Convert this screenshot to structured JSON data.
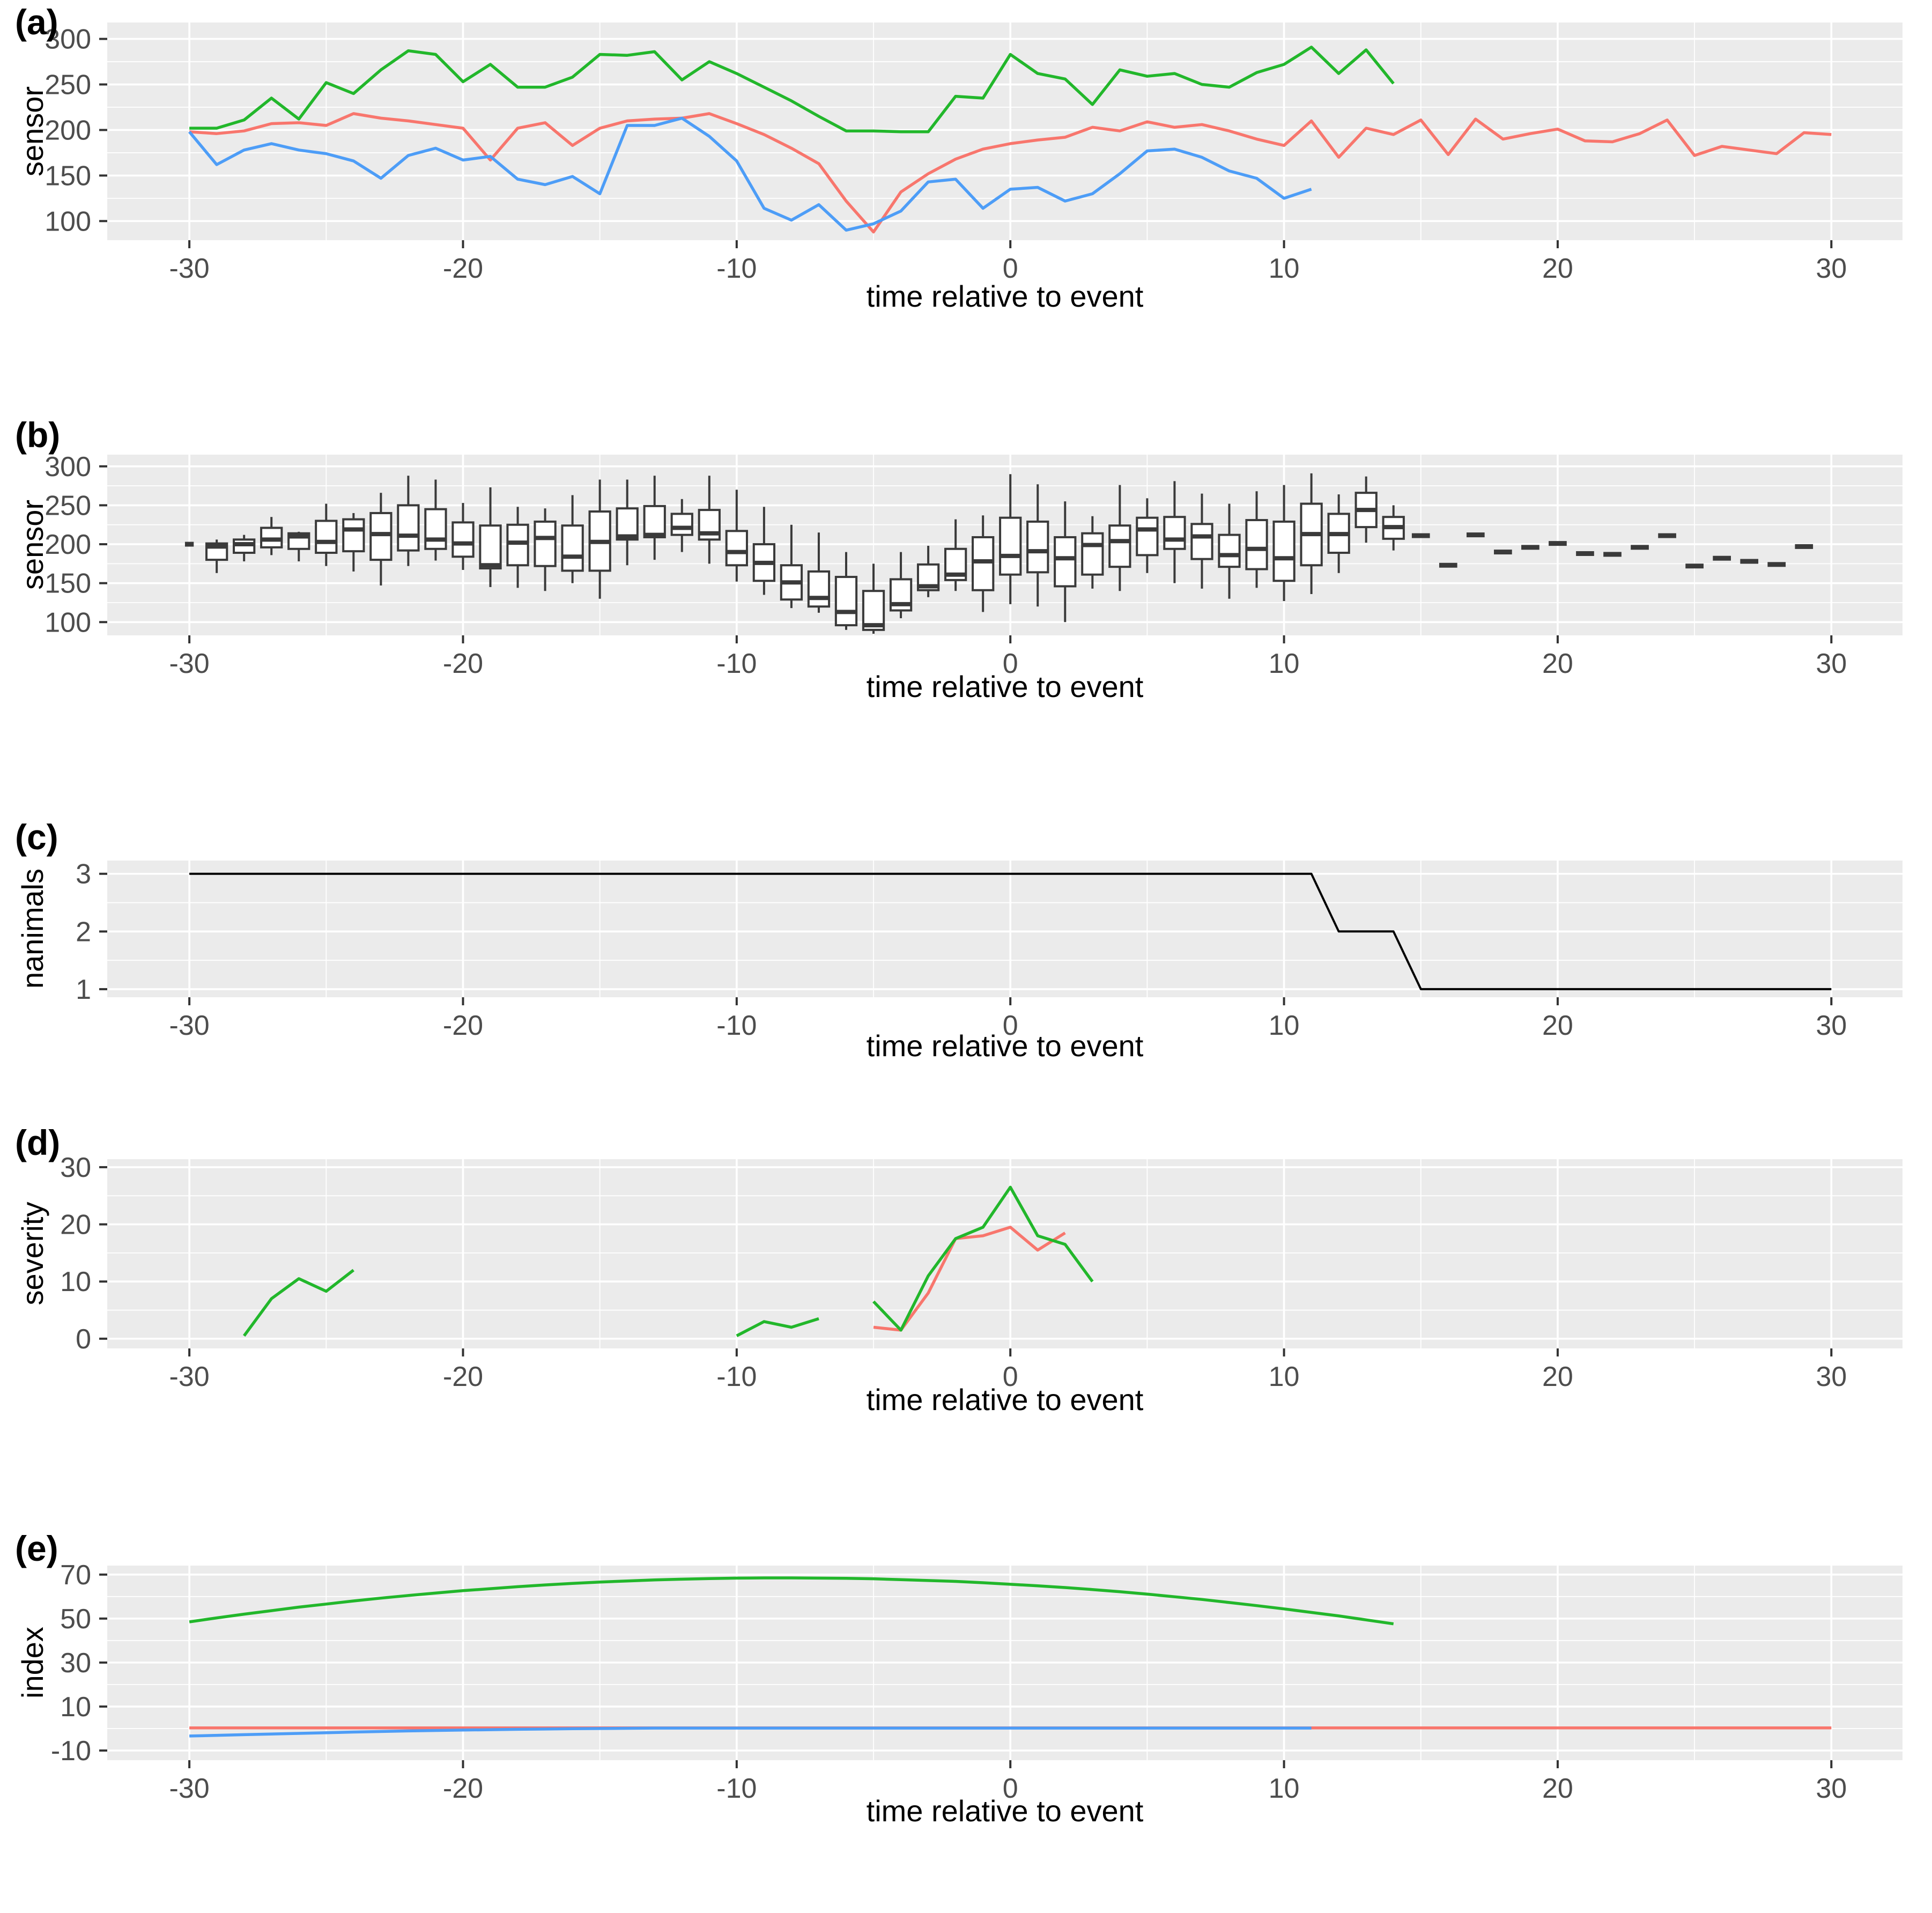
{
  "figure": {
    "xlabel": "time relative to event",
    "background": "#FFFFFF",
    "panel_bg": "#EBEBEB",
    "grid_color": "#FFFFFF",
    "axis_text_color": "#4D4D4D",
    "tick_color": "#333333",
    "box_color": "#3A3A3A",
    "colors": {
      "red": "#F8766D",
      "green": "#22B72B",
      "blue": "#4D9DF7",
      "black": "#000000"
    }
  },
  "panels": {
    "a": {
      "label": "(a)",
      "ylabel": "sensor"
    },
    "b": {
      "label": "(b)",
      "ylabel": "sensor"
    },
    "c": {
      "label": "(c)",
      "ylabel": "nanimals"
    },
    "d": {
      "label": "(d)",
      "ylabel": "severity"
    },
    "e": {
      "label": "(e)",
      "ylabel": "index"
    }
  },
  "chart_data": [
    {
      "id": "a",
      "type": "line",
      "title": "(a)",
      "ylabel": "sensor",
      "xlabel": "time relative to event",
      "xlim": [
        -33,
        32.6
      ],
      "ylim": [
        79,
        318
      ],
      "xticks": [
        -30,
        -20,
        -10,
        0,
        10,
        20,
        30
      ],
      "yticks": [
        100,
        150,
        200,
        250,
        300
      ],
      "grid": true,
      "legend": "none",
      "series": [
        {
          "name": "animal-red",
          "color": "#F8766D",
          "x0": -30,
          "step": 1,
          "y": [
            198,
            196,
            199,
            207,
            208,
            205,
            218,
            213,
            210,
            206,
            202,
            167,
            202,
            208,
            183,
            202,
            210,
            212,
            213,
            218,
            207,
            195,
            180,
            163,
            122,
            88,
            132,
            152,
            168,
            179,
            185,
            189,
            192,
            203,
            199,
            209,
            203,
            206,
            199,
            190,
            183,
            210,
            170,
            202,
            195,
            211,
            173,
            212,
            190,
            196,
            201,
            188,
            187,
            196,
            211,
            172,
            182,
            178,
            174,
            197,
            195
          ]
        },
        {
          "name": "animal-green",
          "color": "#22B72B",
          "x0": -30,
          "step": 1,
          "y": [
            202,
            202,
            211,
            235,
            212,
            252,
            240,
            266,
            287,
            283,
            253,
            272,
            247,
            247,
            258,
            283,
            282,
            286,
            255,
            275,
            262,
            247,
            232,
            215,
            199,
            199,
            198,
            198,
            237,
            235,
            283,
            262,
            256,
            228,
            266,
            259,
            262,
            250,
            247,
            263,
            272,
            291,
            262,
            288,
            251
          ]
        },
        {
          "name": "animal-blue",
          "color": "#4D9DF7",
          "x0": -30,
          "step": 1,
          "y": [
            198,
            162,
            178,
            185,
            178,
            174,
            166,
            147,
            172,
            180,
            167,
            171,
            146,
            140,
            149,
            130,
            205,
            205,
            213,
            193,
            166,
            114,
            101,
            118,
            90,
            97,
            111,
            143,
            146,
            114,
            135,
            137,
            122,
            130,
            152,
            177,
            179,
            170,
            155,
            147,
            125,
            135
          ]
        }
      ]
    },
    {
      "id": "b",
      "type": "boxplot",
      "title": "(b)",
      "ylabel": "sensor",
      "xlabel": "time relative to event",
      "xlim": [
        -33,
        32.6
      ],
      "ylim": [
        83,
        315
      ],
      "xticks": [
        -30,
        -20,
        -10,
        0,
        10,
        20,
        30
      ],
      "yticks": [
        100,
        150,
        200,
        250,
        300
      ],
      "grid": true,
      "boxes": [
        {
          "t": -29,
          "lo": 163,
          "q1": 180,
          "med": 197,
          "q3": 201,
          "hi": 206
        },
        {
          "t": -28,
          "lo": 178,
          "q1": 189,
          "med": 200,
          "q3": 206,
          "hi": 212
        },
        {
          "t": -27,
          "lo": 186,
          "q1": 196,
          "med": 206,
          "q3": 221,
          "hi": 235
        },
        {
          "t": -26,
          "lo": 178,
          "q1": 194,
          "med": 210,
          "q3": 214,
          "hi": 216
        },
        {
          "t": -25,
          "lo": 172,
          "q1": 189,
          "med": 203,
          "q3": 230,
          "hi": 252
        },
        {
          "t": -24,
          "lo": 165,
          "q1": 191,
          "med": 219,
          "q3": 232,
          "hi": 240
        },
        {
          "t": -23,
          "lo": 147,
          "q1": 180,
          "med": 213,
          "q3": 240,
          "hi": 266
        },
        {
          "t": -22,
          "lo": 172,
          "q1": 192,
          "med": 211,
          "q3": 250,
          "hi": 288
        },
        {
          "t": -21,
          "lo": 179,
          "q1": 194,
          "med": 206,
          "q3": 245,
          "hi": 283
        },
        {
          "t": -20,
          "lo": 167,
          "q1": 184,
          "med": 201,
          "q3": 228,
          "hi": 253
        },
        {
          "t": -19,
          "lo": 145,
          "q1": 169,
          "med": 173,
          "q3": 224,
          "hi": 273
        },
        {
          "t": -18,
          "lo": 144,
          "q1": 173,
          "med": 202,
          "q3": 225,
          "hi": 248
        },
        {
          "t": -17,
          "lo": 140,
          "q1": 172,
          "med": 208,
          "q3": 229,
          "hi": 246
        },
        {
          "t": -16,
          "lo": 150,
          "q1": 166,
          "med": 184,
          "q3": 224,
          "hi": 263
        },
        {
          "t": -15,
          "lo": 130,
          "q1": 166,
          "med": 203,
          "q3": 242,
          "hi": 283
        },
        {
          "t": -14,
          "lo": 173,
          "q1": 206,
          "med": 210,
          "q3": 246,
          "hi": 283
        },
        {
          "t": -13,
          "lo": 180,
          "q1": 209,
          "med": 212,
          "q3": 249,
          "hi": 288
        },
        {
          "t": -12,
          "lo": 190,
          "q1": 212,
          "med": 221,
          "q3": 239,
          "hi": 258
        },
        {
          "t": -11,
          "lo": 175,
          "q1": 206,
          "med": 214,
          "q3": 244,
          "hi": 288
        },
        {
          "t": -10,
          "lo": 152,
          "q1": 173,
          "med": 190,
          "q3": 217,
          "hi": 270
        },
        {
          "t": -9,
          "lo": 135,
          "q1": 153,
          "med": 176,
          "q3": 200,
          "hi": 248
        },
        {
          "t": -8,
          "lo": 118,
          "q1": 129,
          "med": 151,
          "q3": 173,
          "hi": 225
        },
        {
          "t": -7,
          "lo": 112,
          "q1": 120,
          "med": 131,
          "q3": 165,
          "hi": 215
        },
        {
          "t": -6,
          "lo": 90,
          "q1": 96,
          "med": 113,
          "q3": 158,
          "hi": 190
        },
        {
          "t": -5,
          "lo": 85,
          "q1": 90,
          "med": 96,
          "q3": 140,
          "hi": 175
        },
        {
          "t": -4,
          "lo": 105,
          "q1": 115,
          "med": 123,
          "q3": 155,
          "hi": 190
        },
        {
          "t": -3,
          "lo": 132,
          "q1": 141,
          "med": 146,
          "q3": 174,
          "hi": 198
        },
        {
          "t": -2,
          "lo": 140,
          "q1": 154,
          "med": 161,
          "q3": 194,
          "hi": 232
        },
        {
          "t": -1,
          "lo": 113,
          "q1": 141,
          "med": 178,
          "q3": 209,
          "hi": 237
        },
        {
          "t": 0,
          "lo": 123,
          "q1": 161,
          "med": 185,
          "q3": 234,
          "hi": 290
        },
        {
          "t": 1,
          "lo": 120,
          "q1": 164,
          "med": 191,
          "q3": 229,
          "hi": 277
        },
        {
          "t": 2,
          "lo": 100,
          "q1": 146,
          "med": 182,
          "q3": 209,
          "hi": 255
        },
        {
          "t": 3,
          "lo": 143,
          "q1": 161,
          "med": 199,
          "q3": 214,
          "hi": 236
        },
        {
          "t": 4,
          "lo": 140,
          "q1": 171,
          "med": 204,
          "q3": 224,
          "hi": 276
        },
        {
          "t": 5,
          "lo": 163,
          "q1": 186,
          "med": 219,
          "q3": 234,
          "hi": 259
        },
        {
          "t": 6,
          "lo": 150,
          "q1": 194,
          "med": 206,
          "q3": 235,
          "hi": 281
        },
        {
          "t": 7,
          "lo": 143,
          "q1": 181,
          "med": 210,
          "q3": 226,
          "hi": 265
        },
        {
          "t": 8,
          "lo": 130,
          "q1": 171,
          "med": 186,
          "q3": 212,
          "hi": 252
        },
        {
          "t": 9,
          "lo": 144,
          "q1": 168,
          "med": 194,
          "q3": 231,
          "hi": 268
        },
        {
          "t": 10,
          "lo": 127,
          "q1": 153,
          "med": 182,
          "q3": 229,
          "hi": 276
        },
        {
          "t": 11,
          "lo": 136,
          "q1": 173,
          "med": 213,
          "q3": 252,
          "hi": 291
        },
        {
          "t": 12,
          "lo": 163,
          "q1": 189,
          "med": 213,
          "q3": 239,
          "hi": 264
        },
        {
          "t": 13,
          "lo": 202,
          "q1": 222,
          "med": 244,
          "q3": 266,
          "hi": 287
        },
        {
          "t": 14,
          "lo": 192,
          "q1": 207,
          "med": 222,
          "q3": 235,
          "hi": 250
        }
      ],
      "dashes": [
        {
          "t": -30,
          "v": 200,
          "hw": 0.16
        },
        {
          "t": 15,
          "v": 211
        },
        {
          "t": 16,
          "v": 173
        },
        {
          "t": 17,
          "v": 212
        },
        {
          "t": 18,
          "v": 190
        },
        {
          "t": 19,
          "v": 196
        },
        {
          "t": 20,
          "v": 201
        },
        {
          "t": 21,
          "v": 188
        },
        {
          "t": 22,
          "v": 187
        },
        {
          "t": 23,
          "v": 196
        },
        {
          "t": 24,
          "v": 211
        },
        {
          "t": 25,
          "v": 172
        },
        {
          "t": 26,
          "v": 182
        },
        {
          "t": 27,
          "v": 178
        },
        {
          "t": 28,
          "v": 174
        },
        {
          "t": 29,
          "v": 197
        }
      ]
    },
    {
      "id": "c",
      "type": "line",
      "title": "(c)",
      "ylabel": "nanimals",
      "xlabel": "time relative to event",
      "xlim": [
        -33,
        32.6
      ],
      "ylim": [
        0.86,
        3.23
      ],
      "xticks": [
        -30,
        -20,
        -10,
        0,
        10,
        20,
        30
      ],
      "yticks": [
        1,
        2,
        3
      ],
      "grid": true,
      "lineWidth": 4,
      "series": [
        {
          "name": "number-of-animals",
          "color": "#000000",
          "x": [
            -30,
            11,
            12,
            14,
            15,
            30
          ],
          "y": [
            3,
            3,
            2,
            2,
            1,
            1
          ]
        }
      ]
    },
    {
      "id": "d",
      "type": "line",
      "title": "(d)",
      "ylabel": "severity",
      "xlabel": "time relative to event",
      "xlim": [
        -33,
        32.6
      ],
      "ylim": [
        -1.7,
        31.4
      ],
      "xticks": [
        -30,
        -20,
        -10,
        0,
        10,
        20,
        30
      ],
      "yticks": [
        0,
        10,
        20,
        30
      ],
      "grid": true,
      "series": [
        {
          "name": "severity-green-seg1",
          "color": "#22B72B",
          "x": [
            -28,
            -27,
            -26,
            -25,
            -24
          ],
          "y": [
            0.5,
            7,
            10.5,
            8.3,
            12
          ]
        },
        {
          "name": "severity-green-seg2",
          "color": "#22B72B",
          "x": [
            -10,
            -9,
            -8,
            -7
          ],
          "y": [
            0.5,
            3,
            2,
            3.5
          ]
        },
        {
          "name": "severity-red",
          "color": "#F8766D",
          "x": [
            -5,
            -4,
            -3,
            -2,
            -1,
            0,
            1,
            2
          ],
          "y": [
            2,
            1.5,
            8,
            17.5,
            18,
            19.5,
            15.5,
            18.5
          ]
        },
        {
          "name": "severity-green-seg3",
          "color": "#22B72B",
          "x": [
            -5,
            -4,
            -3,
            -2,
            -1,
            0,
            1,
            2,
            3
          ],
          "y": [
            6.5,
            1.5,
            11,
            17.5,
            19.5,
            26.5,
            18,
            16.5,
            10
          ]
        }
      ]
    },
    {
      "id": "e",
      "type": "line",
      "title": "(e)",
      "ylabel": "index",
      "xlabel": "time relative to event",
      "xlim": [
        -33,
        32.6
      ],
      "ylim": [
        -14.4,
        74.1
      ],
      "xticks": [
        -30,
        -20,
        -10,
        0,
        10,
        20,
        30
      ],
      "yticks": [
        -10,
        10,
        30,
        50,
        70
      ],
      "grid": true,
      "series": [
        {
          "name": "index-red",
          "color": "#F8766D",
          "x": [
            -30,
            30
          ],
          "y": [
            0.3,
            0.3
          ]
        },
        {
          "name": "index-blue",
          "color": "#4D9DF7",
          "x": [
            -30,
            -28,
            -26,
            -24,
            -22,
            -20,
            -18,
            -16,
            -14,
            -13,
            11
          ],
          "y": [
            -3.4,
            -2.8,
            -2.2,
            -1.6,
            -1.1,
            -0.7,
            -0.35,
            -0.1,
            0.1,
            0.2,
            0.2
          ]
        },
        {
          "name": "index-green",
          "color": "#22B72B",
          "x0": -30,
          "step": 1,
          "y": [
            48.5,
            50.3,
            52,
            53.6,
            55.2,
            56.6,
            58,
            59.3,
            60.5,
            61.6,
            62.7,
            63.6,
            64.5,
            65.3,
            66,
            66.6,
            67.1,
            67.6,
            67.9,
            68.2,
            68.4,
            68.5,
            68.5,
            68.4,
            68.3,
            68.1,
            67.7,
            67.3,
            66.9,
            66.3,
            65.6,
            64.9,
            64.1,
            63.2,
            62.2,
            61.1,
            59.9,
            58.7,
            57.3,
            55.9,
            54.4,
            52.8,
            51.2,
            49.4,
            47.6
          ]
        }
      ]
    }
  ]
}
